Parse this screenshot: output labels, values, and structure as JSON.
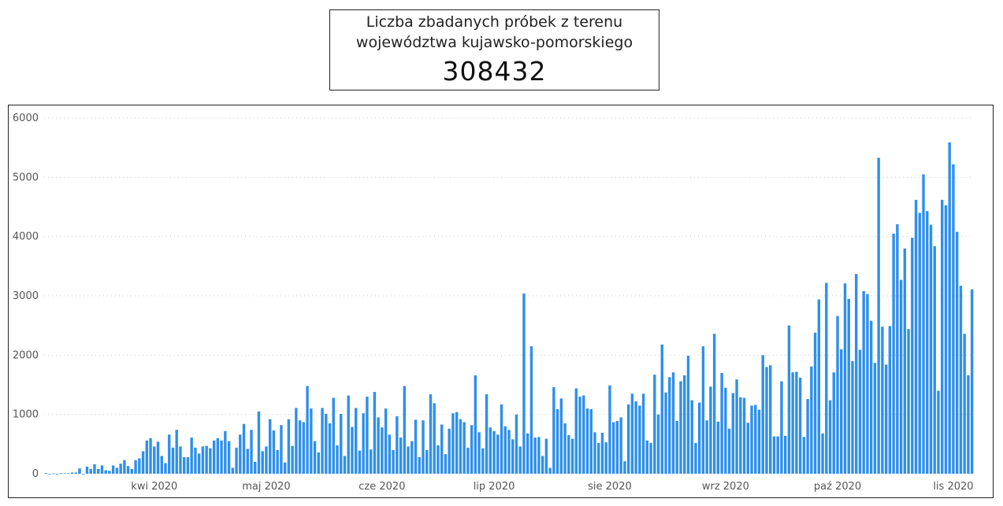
{
  "card": {
    "title_line1": "Liczba zbadanych próbek z terenu",
    "title_line2": "województwa kujawsko-pomorskiego",
    "total": "308432"
  },
  "chart_data": {
    "type": "bar",
    "title": "",
    "xlabel": "",
    "ylabel": "",
    "ylim": [
      0,
      6000
    ],
    "yticks": [
      0,
      1000,
      2000,
      3000,
      4000,
      5000,
      6000
    ],
    "xtick_labels": [
      "kwi 2020",
      "maj 2020",
      "cze 2020",
      "lip 2020",
      "sie 2020",
      "wrz 2020",
      "paź 2020",
      "lis 2020"
    ],
    "xtick_positions": [
      29,
      59,
      90,
      120,
      151,
      182,
      212,
      243
    ],
    "grid": "horizontal dotted",
    "bar_color": "#2F8FEA",
    "values": [
      10,
      0,
      5,
      0,
      10,
      10,
      10,
      20,
      20,
      90,
      0,
      120,
      80,
      160,
      80,
      140,
      60,
      50,
      140,
      100,
      170,
      230,
      130,
      80,
      230,
      260,
      380,
      560,
      600,
      460,
      540,
      300,
      180,
      660,
      440,
      740,
      460,
      280,
      280,
      610,
      440,
      340,
      460,
      470,
      430,
      560,
      600,
      560,
      720,
      550,
      100,
      440,
      660,
      840,
      420,
      740,
      200,
      1050,
      380,
      460,
      920,
      730,
      400,
      820,
      190,
      920,
      470,
      1110,
      900,
      870,
      1480,
      1100,
      550,
      360,
      1110,
      1010,
      850,
      1280,
      480,
      1010,
      300,
      1320,
      790,
      1110,
      390,
      1020,
      1300,
      410,
      1380,
      950,
      780,
      1100,
      660,
      400,
      970,
      610,
      1480,
      460,
      550,
      910,
      280,
      900,
      400,
      1340,
      1190,
      480,
      830,
      330,
      760,
      1020,
      1040,
      920,
      870,
      440,
      820,
      1660,
      700,
      430,
      1340,
      780,
      720,
      660,
      1170,
      800,
      740,
      580,
      1000,
      460,
      3040,
      680,
      2150,
      610,
      620,
      300,
      590,
      100,
      1460,
      1090,
      1270,
      850,
      650,
      590,
      1440,
      1300,
      1320,
      1100,
      1090,
      700,
      520,
      690,
      530,
      1490,
      870,
      890,
      950,
      210,
      1170,
      1350,
      1220,
      1150,
      1350,
      560,
      520,
      1670,
      1000,
      2180,
      1370,
      1630,
      1710,
      890,
      1560,
      1660,
      1990,
      1240,
      520,
      1200,
      2150,
      900,
      1470,
      2360,
      880,
      1700,
      1450,
      760,
      1360,
      1590,
      1290,
      1280,
      860,
      1150,
      1160,
      1080,
      2000,
      1800,
      1830,
      630,
      630,
      1560,
      640,
      2500,
      1710,
      1720,
      1620,
      620,
      1260,
      1810,
      2380,
      2940,
      680,
      3220,
      1240,
      1710,
      2660,
      2100,
      3210,
      2950,
      1900,
      3370,
      2090,
      3080,
      3030,
      2580,
      1870,
      5330,
      2480,
      1840,
      2490,
      4050,
      4210,
      3270,
      3800,
      2440,
      3980,
      4620,
      4400,
      5050,
      4430,
      4200,
      3840,
      1400,
      4620,
      4530,
      5590,
      5220,
      4080,
      3170,
      2360,
      1660,
      3110
    ]
  }
}
